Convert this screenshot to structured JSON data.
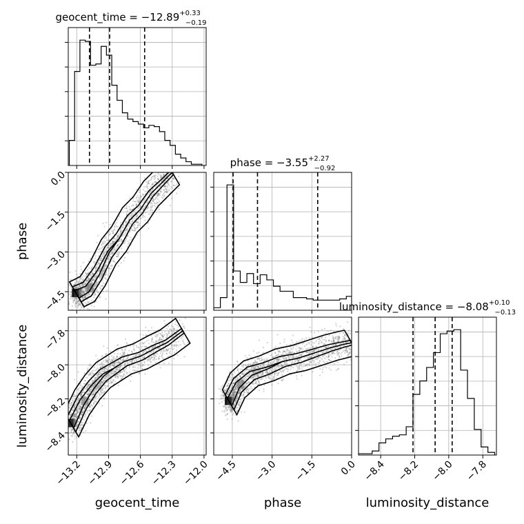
{
  "chart_data": {
    "type": "corner",
    "grid": true,
    "parameters": [
      {
        "name": "geocent_time",
        "range": [
          -13.28,
          -11.98
        ],
        "ticks": [
          -13.2,
          -12.9,
          -12.6,
          -12.3,
          -12.0
        ],
        "tick_labels": [
          "−13.2",
          "−12.9",
          "−12.6",
          "−12.3",
          "−12.0"
        ]
      },
      {
        "name": "phase",
        "range": [
          -5.2,
          0.0
        ],
        "ticks": [
          -4.5,
          -3.0,
          -1.5,
          0.0
        ],
        "tick_labels": [
          "−4.5",
          "−3.0",
          "−1.5",
          "0.0"
        ]
      },
      {
        "name": "luminosity_distance",
        "range": [
          -8.53,
          -7.72
        ],
        "ticks": [
          -8.4,
          -8.2,
          -8.0,
          -7.8
        ],
        "tick_labels": [
          "−8.4",
          "−8.2",
          "−8.0",
          "−7.8"
        ]
      }
    ],
    "titles": [
      {
        "param": "geocent_time",
        "prefix": "geocent_time = −12.89",
        "plus": "+0.33",
        "minus": "−0.19",
        "median": -12.89,
        "q16": -13.08,
        "q84": -12.56
      },
      {
        "param": "phase",
        "prefix": "phase = −3.55",
        "plus": "+2.27",
        "minus": "−0.92",
        "median": -3.55,
        "q16": -4.47,
        "q84": -1.28
      },
      {
        "param": "luminosity_distance",
        "prefix": "luminosity_distance = −8.08",
        "plus": "+0.10",
        "minus": "−0.13",
        "median": -8.08,
        "q16": -8.21,
        "q84": -7.98
      }
    ],
    "histograms": {
      "geocent_time": {
        "bins": [
          -13.27,
          -13.22,
          -13.17,
          -13.12,
          -13.07,
          -13.02,
          -12.97,
          -12.92,
          -12.87,
          -12.82,
          -12.77,
          -12.72,
          -12.67,
          -12.62,
          -12.57,
          -12.52,
          -12.47,
          -12.42,
          -12.37,
          -12.32,
          -12.27,
          -12.22,
          -12.17,
          -12.12,
          -12.07,
          -12.02
        ],
        "counts": [
          20,
          75,
          100,
          99,
          80,
          81,
          95,
          88,
          64,
          52,
          42,
          37,
          35,
          33,
          30,
          32,
          31,
          27,
          20,
          16,
          9,
          6,
          3,
          1,
          1
        ]
      },
      "phase": {
        "bins": [
          -5.2,
          -4.95,
          -4.7,
          -4.45,
          -4.2,
          -3.95,
          -3.7,
          -3.45,
          -3.2,
          -2.95,
          -2.7,
          -2.45,
          -2.2,
          -1.95,
          -1.7,
          -1.45,
          -1.2,
          -0.95,
          -0.7,
          -0.45,
          -0.2,
          0.0
        ],
        "counts": [
          2,
          10,
          99,
          31,
          22,
          29,
          21,
          28,
          24,
          19,
          15,
          15,
          10,
          10,
          9,
          8,
          8,
          8,
          8,
          9,
          11
        ]
      },
      "luminosity_distance": {
        "bins": [
          -8.53,
          -8.49,
          -8.45,
          -8.41,
          -8.37,
          -8.33,
          -8.29,
          -8.25,
          -8.21,
          -8.17,
          -8.13,
          -8.09,
          -8.05,
          -8.01,
          -7.97,
          -7.93,
          -7.89,
          -7.85,
          -7.81,
          -7.77,
          -7.73
        ],
        "counts": [
          1,
          1,
          3,
          9,
          12,
          14,
          15,
          21,
          45,
          55,
          65,
          76,
          90,
          92,
          93,
          63,
          42,
          19,
          6,
          2
        ]
      }
    },
    "joint": [
      {
        "x": "geocent_time",
        "y": "phase",
        "points": [
          [
            -13.2,
            -4.6
          ],
          [
            -13.1,
            -4.4
          ],
          [
            -13.0,
            -3.8
          ],
          [
            -12.9,
            -3.0
          ],
          [
            -12.8,
            -2.5
          ],
          [
            -12.7,
            -1.8
          ],
          [
            -12.6,
            -1.4
          ],
          [
            -12.5,
            -0.8
          ],
          [
            -12.4,
            -0.4
          ],
          [
            -12.3,
            0.0
          ]
        ]
      },
      {
        "x": "geocent_time",
        "y": "luminosity_distance",
        "points": [
          [
            -13.25,
            -8.35
          ],
          [
            -13.15,
            -8.22
          ],
          [
            -13.05,
            -8.13
          ],
          [
            -12.95,
            -8.06
          ],
          [
            -12.85,
            -8.02
          ],
          [
            -12.75,
            -7.98
          ],
          [
            -12.6,
            -7.95
          ],
          [
            -12.45,
            -7.9
          ],
          [
            -12.35,
            -7.87
          ],
          [
            -12.2,
            -7.8
          ]
        ]
      },
      {
        "x": "phase",
        "y": "luminosity_distance",
        "points": [
          [
            -4.6,
            -8.22
          ],
          [
            -4.3,
            -8.12
          ],
          [
            -3.8,
            -8.05
          ],
          [
            -3.2,
            -8.02
          ],
          [
            -2.6,
            -7.98
          ],
          [
            -2.0,
            -7.96
          ],
          [
            -1.4,
            -7.93
          ],
          [
            -0.8,
            -7.9
          ],
          [
            -0.3,
            -7.88
          ],
          [
            0.0,
            -7.87
          ]
        ]
      }
    ]
  }
}
